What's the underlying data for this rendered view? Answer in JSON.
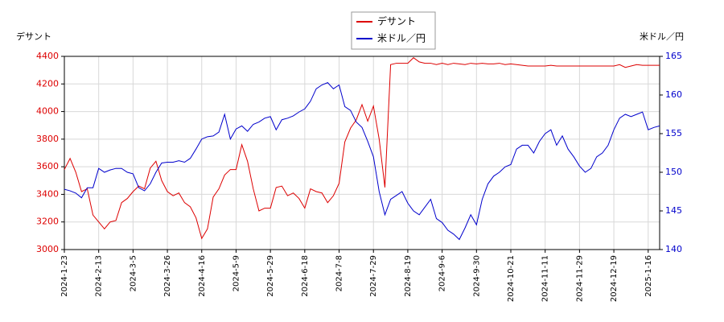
{
  "chart_data": {
    "type": "line",
    "legend": "upper center",
    "grid": true,
    "ylabel": "デサント",
    "y2label": "米ドル／円",
    "categories": [
      "2024-1-23",
      null,
      null,
      null,
      null,
      null,
      "2024-2-13",
      null,
      null,
      null,
      null,
      null,
      "2024-3-5",
      null,
      null,
      null,
      null,
      null,
      "2024-3-26",
      null,
      null,
      null,
      null,
      null,
      "2024-4-16",
      null,
      null,
      null,
      null,
      null,
      "2024-5-9",
      null,
      null,
      null,
      null,
      null,
      "2024-5-29",
      null,
      null,
      null,
      null,
      null,
      "2024-6-18",
      null,
      null,
      null,
      null,
      null,
      "2024-7-8",
      null,
      null,
      null,
      null,
      null,
      "2024-7-29",
      null,
      null,
      null,
      null,
      null,
      "2024-8-19",
      null,
      null,
      null,
      null,
      null,
      "2024-9-6",
      null,
      null,
      null,
      null,
      null,
      "2024-9-30",
      null,
      null,
      null,
      null,
      null,
      "2024-10-21",
      null,
      null,
      null,
      null,
      null,
      "2024-11-11",
      null,
      null,
      null,
      null,
      null,
      "2024-11-29",
      null,
      null,
      null,
      null,
      null,
      "2024-12-19",
      null,
      null,
      null,
      null,
      null,
      "2025-1-16",
      null,
      null
    ],
    "ylim": [
      3000,
      4400
    ],
    "yticks": [
      3000,
      3200,
      3400,
      3600,
      3800,
      4000,
      4200,
      4400
    ],
    "y2lim": [
      140,
      165
    ],
    "y2ticks": [
      140,
      145,
      150,
      155,
      160,
      165
    ],
    "series": [
      {
        "name": "デサント",
        "color": "#dd0000",
        "values": [
          3580,
          3660,
          3560,
          3420,
          3440,
          3250,
          3200,
          3150,
          3200,
          3210,
          3340,
          3370,
          3420,
          3460,
          3440,
          3590,
          3640,
          3500,
          3420,
          3390,
          3410,
          3340,
          3310,
          3230,
          3080,
          3150,
          3380,
          3440,
          3540,
          3580,
          3580,
          3760,
          3640,
          3440,
          3280,
          3300,
          3300,
          3450,
          3460,
          3390,
          3410,
          3370,
          3300,
          3440,
          3420,
          3410,
          3340,
          3390,
          3480,
          3780,
          3880,
          3940,
          4050,
          3930,
          4040,
          3800,
          3450,
          4340,
          4350,
          4350,
          4350,
          4390,
          4360,
          4350,
          4350,
          4340,
          4350,
          4340,
          4350,
          4345,
          4340,
          4350,
          4345,
          4350,
          4345,
          4345,
          4350,
          4340,
          4345,
          4340,
          4335,
          4330,
          4330,
          4330,
          4330,
          4335,
          4330,
          4330,
          4330,
          4330,
          4330,
          4330,
          4330,
          4330,
          4330,
          4330,
          4330,
          4340,
          4320,
          4330,
          4340,
          4335,
          4335,
          4335,
          4335
        ]
      },
      {
        "name": "米ドル／円",
        "color": "#0000cc",
        "axis": "y2",
        "values": [
          147.8,
          147.6,
          147.3,
          146.7,
          148.0,
          148.0,
          150.5,
          150.0,
          150.3,
          150.5,
          150.5,
          150.0,
          149.8,
          148.0,
          147.6,
          148.5,
          150.0,
          151.2,
          151.3,
          151.3,
          151.5,
          151.3,
          151.8,
          153.0,
          154.3,
          154.6,
          154.7,
          155.2,
          157.5,
          154.3,
          155.6,
          156.0,
          155.3,
          156.2,
          156.5,
          157.0,
          157.2,
          155.5,
          156.8,
          157.0,
          157.3,
          157.8,
          158.2,
          159.2,
          160.8,
          161.3,
          161.6,
          160.8,
          161.3,
          158.5,
          158.0,
          156.5,
          155.8,
          154.0,
          152.0,
          147.5,
          144.5,
          146.5,
          147.0,
          147.5,
          146.0,
          145.0,
          144.5,
          145.5,
          146.5,
          144.0,
          143.5,
          142.5,
          142.0,
          141.3,
          142.8,
          144.5,
          143.2,
          146.5,
          148.5,
          149.5,
          150.0,
          150.7,
          151.0,
          153.0,
          153.5,
          153.5,
          152.5,
          154.0,
          155.0,
          155.5,
          153.5,
          154.7,
          153.0,
          152.0,
          150.8,
          150.0,
          150.5,
          152.0,
          152.5,
          153.5,
          155.5,
          157.0,
          157.5,
          157.2,
          157.5,
          157.8,
          155.5,
          155.8,
          156.0
        ]
      }
    ]
  }
}
